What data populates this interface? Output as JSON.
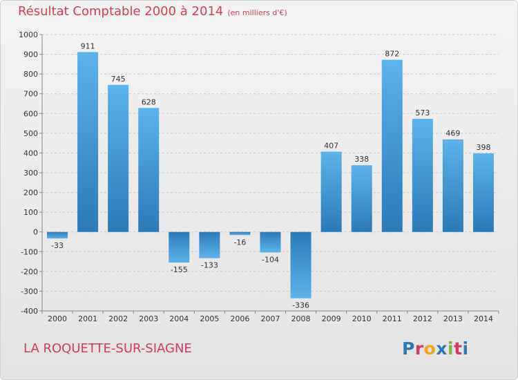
{
  "header": {
    "title": "Résultat Comptable 2000 à 2014",
    "subtitle": "(en milliers d'€)"
  },
  "footer": {
    "commune": "LA ROQUETTE-SUR-SIAGNE",
    "logo": "Proxiti",
    "logo_colors": [
      "#2b78b9",
      "#d23c5a",
      "#f2a51f",
      "#2b78b9",
      "#7ab648",
      "#d23c5a",
      "#2b78b9"
    ]
  },
  "colors": {
    "title": "#d23c5a",
    "bar_light": "#5db3ea",
    "bar_dark": "#2a7ab8",
    "grid": "#c8c8c8",
    "axis_text": "#333333"
  },
  "chart_data": {
    "type": "bar",
    "title": "Résultat Comptable 2000 à 2014",
    "categories": [
      "2000",
      "2001",
      "2002",
      "2003",
      "2004",
      "2005",
      "2006",
      "2007",
      "2008",
      "2009",
      "2010",
      "2011",
      "2012",
      "2013",
      "2014"
    ],
    "values": [
      -33,
      911,
      745,
      628,
      -155,
      -133,
      -16,
      -104,
      -336,
      407,
      338,
      872,
      573,
      469,
      398
    ],
    "ylim": [
      -400,
      1000
    ],
    "yticks": [
      -400,
      -300,
      -200,
      -100,
      0,
      100,
      200,
      300,
      400,
      500,
      600,
      700,
      800,
      900,
      1000
    ],
    "grid": true,
    "xlabel": "",
    "ylabel": ""
  }
}
